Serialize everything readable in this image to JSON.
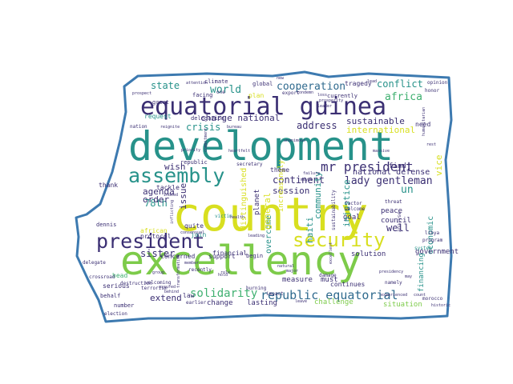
{
  "outline_color": "#3d7ab0",
  "palette": {
    "purple": "#3b2f73",
    "blue": "#2f6a8e",
    "teal": "#27928a",
    "green": "#3fb070",
    "lime": "#7dcb4a",
    "yellow": "#d8df20"
  },
  "words": [
    {
      "text": "country",
      "color": "yellow"
    },
    {
      "text": "excellency",
      "color": "lime"
    },
    {
      "text": "development",
      "color": "teal"
    },
    {
      "text": "equatorial guinea",
      "color": "purple"
    },
    {
      "text": "president",
      "color": "purple"
    },
    {
      "text": "assembly",
      "color": "teal"
    },
    {
      "text": "security",
      "color": "yellow"
    },
    {
      "text": "mr president",
      "color": "purple"
    },
    {
      "text": "republic equatorial",
      "color": "blue"
    },
    {
      "text": "solidarity",
      "color": "green"
    },
    {
      "text": "lady gentleman",
      "color": "purple"
    },
    {
      "text": "cooperation",
      "color": "blue"
    },
    {
      "text": "conflict",
      "color": "teal"
    },
    {
      "text": "africa",
      "color": "green"
    },
    {
      "text": "world",
      "color": "teal"
    },
    {
      "text": "state",
      "color": "teal"
    },
    {
      "text": "crisis",
      "color": "teal"
    },
    {
      "text": "sustainable",
      "color": "purple"
    },
    {
      "text": "international",
      "color": "yellow"
    },
    {
      "text": "continent",
      "color": "purple"
    },
    {
      "text": "agenda",
      "color": "purple"
    },
    {
      "text": "sister",
      "color": "purple"
    },
    {
      "text": "78th",
      "color": "teal"
    },
    {
      "text": "extend",
      "color": "purple"
    },
    {
      "text": "session",
      "color": "purple"
    },
    {
      "text": "economic",
      "color": "teal"
    },
    {
      "text": "well",
      "color": "purple"
    },
    {
      "text": "address",
      "color": "purple"
    },
    {
      "text": "charge national",
      "color": "purple"
    },
    {
      "text": "national defense",
      "color": "purple"
    },
    {
      "text": "order",
      "color": "purple"
    },
    {
      "text": "wish",
      "color": "purple"
    },
    {
      "text": "issue",
      "color": "purple"
    },
    {
      "text": "haiti",
      "color": "teal"
    },
    {
      "text": "peace",
      "color": "purple"
    },
    {
      "text": "council",
      "color": "purple"
    },
    {
      "text": "government",
      "color": "purple"
    },
    {
      "text": "solution",
      "color": "purple"
    },
    {
      "text": "situation",
      "color": "lime"
    },
    {
      "text": "challenge",
      "color": "lime"
    },
    {
      "text": "lasting",
      "color": "purple"
    },
    {
      "text": "change",
      "color": "purple"
    },
    {
      "text": "measure",
      "color": "purple"
    },
    {
      "text": "must",
      "color": "purple"
    },
    {
      "text": "goal",
      "color": "purple"
    },
    {
      "text": "financing",
      "color": "teal"
    },
    {
      "text": "vice",
      "color": "yellow"
    },
    {
      "text": "un",
      "color": "teal"
    },
    {
      "text": "find",
      "color": "purple"
    },
    {
      "text": "need",
      "color": "purple"
    },
    {
      "text": "tragedy",
      "color": "purple"
    },
    {
      "text": "climate",
      "color": "purple"
    },
    {
      "text": "global",
      "color": "purple"
    },
    {
      "text": "currently",
      "color": "purple"
    },
    {
      "text": "facing",
      "color": "purple"
    },
    {
      "text": "plan",
      "color": "yellow"
    },
    {
      "text": "great",
      "color": "purple"
    },
    {
      "text": "tackle",
      "color": "purple"
    },
    {
      "text": "concerned",
      "color": "purple"
    },
    {
      "text": "support",
      "color": "purple"
    },
    {
      "text": "protocol",
      "color": "purple"
    },
    {
      "text": "african",
      "color": "yellow"
    },
    {
      "text": "dennis",
      "color": "purple"
    },
    {
      "text": "head",
      "color": "green"
    },
    {
      "text": "serious",
      "color": "purple"
    },
    {
      "text": "behalf",
      "color": "purple"
    },
    {
      "text": "number",
      "color": "purple"
    },
    {
      "text": "election",
      "color": "purple"
    },
    {
      "text": "distinguished",
      "color": "yellow"
    },
    {
      "text": "financial",
      "color": "purple"
    },
    {
      "text": "overcome",
      "color": "teal"
    },
    {
      "text": "general",
      "color": "yellow"
    },
    {
      "text": "continues",
      "color": "purple"
    },
    {
      "text": "planet",
      "color": "purple"
    },
    {
      "text": "begin",
      "color": "purple"
    },
    {
      "text": "injustice",
      "color": "teal"
    },
    {
      "text": "increasingly",
      "color": "yellow"
    },
    {
      "text": "community",
      "color": "teal"
    },
    {
      "text": "theme",
      "color": "purple"
    },
    {
      "text": "quite",
      "color": "purple"
    },
    {
      "text": "join",
      "color": "teal"
    },
    {
      "text": "law",
      "color": "purple"
    },
    {
      "text": "request",
      "color": "teal"
    },
    {
      "text": "thank",
      "color": "purple"
    },
    {
      "text": "delegation",
      "color": "purple"
    },
    {
      "text": "republic",
      "color": "purple"
    },
    {
      "text": "secretary",
      "color": "purple"
    },
    {
      "text": "one",
      "color": "purple"
    },
    {
      "text": "export",
      "color": "purple"
    },
    {
      "text": "honor",
      "color": "purple"
    },
    {
      "text": "nation",
      "color": "purple"
    },
    {
      "text": "delegate",
      "color": "purple"
    },
    {
      "text": "crossroad",
      "color": "purple"
    },
    {
      "text": "recently",
      "color": "purple"
    },
    {
      "text": "victim",
      "color": "teal"
    },
    {
      "text": "factor",
      "color": "purple"
    },
    {
      "text": "welcome",
      "color": "purple"
    },
    {
      "text": "threat",
      "color": "purple"
    },
    {
      "text": "damage",
      "color": "purple"
    },
    {
      "text": "namely",
      "color": "purple"
    },
    {
      "text": "libya",
      "color": "purple"
    },
    {
      "text": "analyse",
      "color": "purple"
    },
    {
      "text": "program",
      "color": "purple"
    },
    {
      "text": "system",
      "color": "teal"
    },
    {
      "text": "morocco",
      "color": "purple"
    },
    {
      "text": "terrorism",
      "color": "purple"
    },
    {
      "text": "welcoming",
      "color": "purple"
    },
    {
      "text": "destruction",
      "color": "purple"
    },
    {
      "text": "impact",
      "color": "purple"
    },
    {
      "text": "earlier",
      "color": "purple"
    },
    {
      "text": "burning",
      "color": "purple"
    },
    {
      "text": "leave",
      "color": "purple"
    },
    {
      "text": "hold",
      "color": "purple"
    },
    {
      "text": "sustainability",
      "color": "purple"
    },
    {
      "text": "opinion",
      "color": "purple"
    },
    {
      "text": "leader",
      "color": "purple"
    },
    {
      "text": "attention",
      "color": "purple"
    },
    {
      "text": "prospect",
      "color": "purple"
    },
    {
      "text": "health",
      "color": "purple"
    },
    {
      "text": "natural",
      "color": "purple"
    },
    {
      "text": "major",
      "color": "purple"
    },
    {
      "text": "condemn",
      "color": "purple"
    },
    {
      "text": "prosperity",
      "color": "purple"
    },
    {
      "text": "experienced",
      "color": "purple"
    },
    {
      "text": "historic",
      "color": "purple"
    },
    {
      "text": "count",
      "color": "purple"
    },
    {
      "text": "priority",
      "color": "purple"
    },
    {
      "text": "indeed",
      "color": "purple"
    },
    {
      "text": "group",
      "color": "purple"
    },
    {
      "text": "assured",
      "color": "purple"
    },
    {
      "text": "behind",
      "color": "purple"
    },
    {
      "text": "role",
      "color": "purple"
    },
    {
      "text": "failure",
      "color": "purple"
    },
    {
      "text": "maybe",
      "color": "purple"
    },
    {
      "text": "reignite",
      "color": "purple"
    },
    {
      "text": "heartfelt",
      "color": "purple"
    },
    {
      "text": "bureau",
      "color": "purple"
    },
    {
      "text": "presidency",
      "color": "purple"
    },
    {
      "text": "humanitarian",
      "color": "purple"
    },
    {
      "text": "new",
      "color": "purple"
    },
    {
      "text": "lead",
      "color": "purple"
    },
    {
      "text": "loss",
      "color": "purple"
    },
    {
      "text": "massive",
      "color": "purple"
    },
    {
      "text": "consensual",
      "color": "purple"
    },
    {
      "text": "leading",
      "color": "purple"
    },
    {
      "text": "inflicting",
      "color": "purple"
    },
    {
      "text": "transformative",
      "color": "purple"
    },
    {
      "text": "unanimous",
      "color": "purple"
    },
    {
      "text": "commitment",
      "color": "purple"
    },
    {
      "text": "excellent",
      "color": "purple"
    },
    {
      "text": "member",
      "color": "purple"
    },
    {
      "text": "rest",
      "color": "purple"
    },
    {
      "text": "may",
      "color": "purple"
    }
  ]
}
